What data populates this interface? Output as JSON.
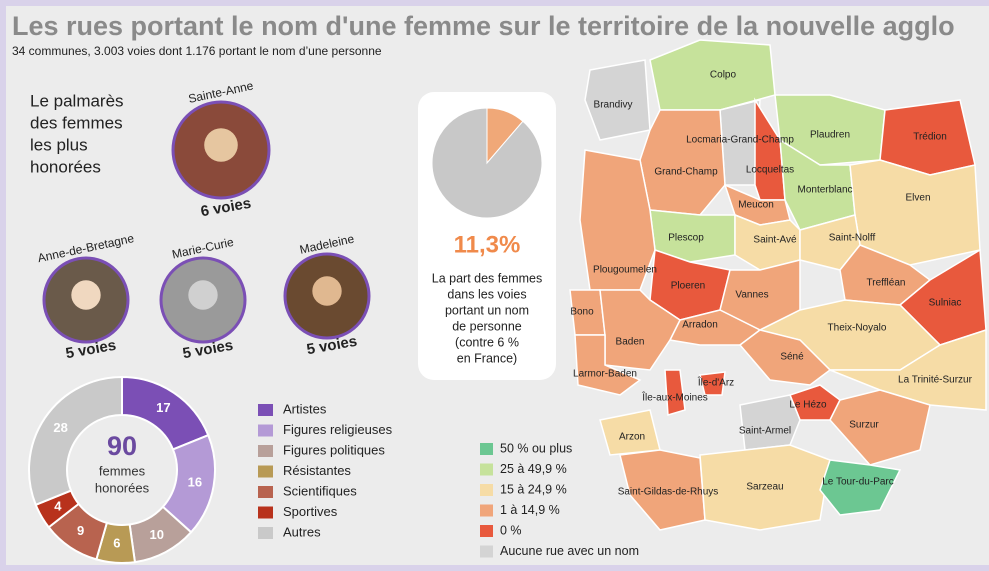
{
  "header": {
    "title": "Les rues portant le nom d'une femme sur le territoire de la nouvelle agglo",
    "subtitle": "34 communes, 3.003 voies dont 1.176 portant le nom d’une personne"
  },
  "palmares": {
    "title": [
      "Le palmarès",
      "des femmes",
      "les plus",
      "honorées"
    ],
    "people": [
      {
        "name": "Sainte-Anne",
        "count": "6 voies"
      },
      {
        "name": "Anne-de-Bretagne",
        "count": "5 voies"
      },
      {
        "name": "Marie-Curie",
        "count": "5 voies"
      },
      {
        "name": "Madeleine",
        "count": "5 voies"
      }
    ]
  },
  "chart_data": [
    {
      "type": "donut",
      "categories": [
        "Artistes",
        "Figures religieuses",
        "Figures politiques",
        "Résistantes",
        "Scientifiques",
        "Sportives",
        "Autres"
      ],
      "values": [
        17,
        16,
        10,
        6,
        9,
        4,
        28
      ],
      "colors": [
        "#7b4fb5",
        "#b49ad6",
        "#b8a09a",
        "#b89a55",
        "#b8634f",
        "#b8321c",
        "#c9c9c9"
      ],
      "center_value": 90,
      "center_label": [
        "femmes",
        "honorées"
      ]
    },
    {
      "type": "pie",
      "values": [
        11.3,
        88.7
      ],
      "value_labels": [
        "11,3%",
        null
      ],
      "colors": [
        "#f0a878",
        "#c8c8c8"
      ],
      "caption": [
        "La part des femmes",
        "dans les voies",
        "portant un nom",
        "de personne",
        "(contre 6 %",
        "en France)"
      ]
    }
  ],
  "map": {
    "legend": [
      {
        "label": "50 % ou plus",
        "color": "#6cc792"
      },
      {
        "label": "25 à 49,9 %",
        "color": "#c6e29b"
      },
      {
        "label": "15 à 24,9 %",
        "color": "#f6dca6"
      },
      {
        "label": "1 à 14,9 %",
        "color": "#f0a57a"
      },
      {
        "label": "0 %",
        "color": "#e8593d"
      },
      {
        "label": "Aucune rue avec un nom",
        "color": "#d4d4d4"
      }
    ],
    "communes": [
      {
        "name": "Brandivy",
        "class": 5
      },
      {
        "name": "Colpo",
        "class": 1
      },
      {
        "name": "Locmaria-Grand-Champ",
        "class": 5
      },
      {
        "name": "Plaudren",
        "class": 1
      },
      {
        "name": "Trédion",
        "class": 4
      },
      {
        "name": "Grand-Champ",
        "class": 3
      },
      {
        "name": "Locqueltas",
        "class": 4
      },
      {
        "name": "Monterblanc",
        "class": 1
      },
      {
        "name": "Elven",
        "class": 2
      },
      {
        "name": "Meucon",
        "class": 3
      },
      {
        "name": "Plescop",
        "class": 1
      },
      {
        "name": "Saint-Avé",
        "class": 2
      },
      {
        "name": "Saint-Nolff",
        "class": 2
      },
      {
        "name": "Plougoumelen",
        "class": 3
      },
      {
        "name": "Ploeren",
        "class": 4
      },
      {
        "name": "Vannes",
        "class": 3
      },
      {
        "name": "Treffléan",
        "class": 3
      },
      {
        "name": "Sulniac",
        "class": 4
      },
      {
        "name": "Bono",
        "class": 3
      },
      {
        "name": "Arradon",
        "class": 3
      },
      {
        "name": "Theix-Noyalo",
        "class": 2
      },
      {
        "name": "Baden",
        "class": 3
      },
      {
        "name": "Séné",
        "class": 3
      },
      {
        "name": "Larmor-Baden",
        "class": 3
      },
      {
        "name": "Île-d'Arz",
        "class": 4
      },
      {
        "name": "Île-aux-Moines",
        "class": 4
      },
      {
        "name": "La Trinité-Surzur",
        "class": 2
      },
      {
        "name": "Le Hézo",
        "class": 4
      },
      {
        "name": "Arzon",
        "class": 2
      },
      {
        "name": "Saint-Armel",
        "class": 5
      },
      {
        "name": "Surzur",
        "class": 3
      },
      {
        "name": "Saint-Gildas-de-Rhuys",
        "class": 3
      },
      {
        "name": "Sarzeau",
        "class": 2
      },
      {
        "name": "Le Tour-du-Parc",
        "class": 0
      }
    ]
  }
}
